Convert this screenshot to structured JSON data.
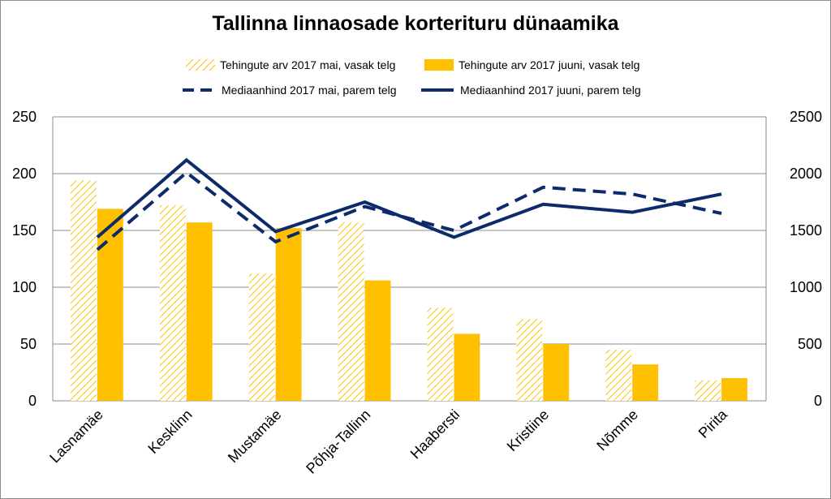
{
  "chart_data": {
    "type": "bar",
    "title": "Tallinna linnaosade korterituru dünaamika",
    "categories": [
      "Lasnamäe",
      "Kesklinn",
      "Mustamäe",
      "Põhja-Tallinn",
      "Haabersti",
      "Kristiine",
      "Nõmme",
      "Pirita"
    ],
    "series": [
      {
        "name": "Tehingute arv 2017 mai, vasak telg",
        "kind": "bar",
        "axis": "left",
        "style": "hatched",
        "color": "#FFC000",
        "values": [
          194,
          172,
          112,
          157,
          82,
          72,
          45,
          18
        ]
      },
      {
        "name": "Tehingute arv 2017 juuni, vasak telg",
        "kind": "bar",
        "axis": "left",
        "style": "solid",
        "color": "#FFC000",
        "values": [
          169,
          157,
          152,
          106,
          59,
          50,
          32,
          20
        ]
      },
      {
        "name": "Mediaanhind 2017 mai, parem telg",
        "kind": "line",
        "axis": "right",
        "style": "dashed",
        "color": "#0D2B6B",
        "values": [
          1330,
          2010,
          1400,
          1710,
          1500,
          1880,
          1820,
          1650
        ]
      },
      {
        "name": "Mediaanhind 2017 juuni, parem telg",
        "kind": "line",
        "axis": "right",
        "style": "solid",
        "color": "#0D2B6B",
        "values": [
          1440,
          2120,
          1490,
          1750,
          1440,
          1730,
          1660,
          1820
        ]
      }
    ],
    "y_left": {
      "ylim": [
        0,
        250
      ],
      "ticks": [
        "0",
        "50",
        "100",
        "150",
        "200",
        "250"
      ]
    },
    "y_right": {
      "ylim": [
        0,
        2500
      ],
      "ticks": [
        "0",
        "500",
        "1000",
        "1500",
        "2000",
        "2500"
      ]
    },
    "grid": true,
    "legend_position": "top"
  }
}
